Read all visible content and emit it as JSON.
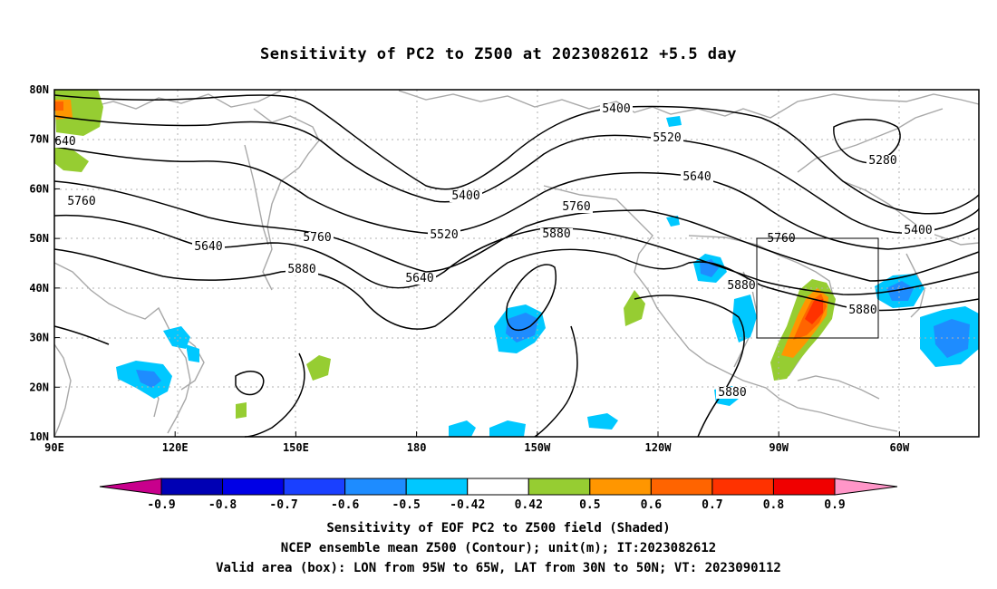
{
  "title": "Sensitivity of PC2 to Z500 at 2023082612 +5.5 day",
  "lat_labels": [
    "80N",
    "70N",
    "60N",
    "50N",
    "40N",
    "30N",
    "20N",
    "10N"
  ],
  "lon_labels": [
    "90E",
    "120E",
    "150E",
    "180",
    "150W",
    "120W",
    "90W",
    "60W"
  ],
  "contour_labels": [
    {
      "text": "5400",
      "name": "contour-label-5400"
    },
    {
      "text": "5520",
      "name": "contour-label-5520"
    },
    {
      "text": "5280",
      "name": "contour-label-5280"
    },
    {
      "text": "5640",
      "name": "contour-label-5640"
    },
    {
      "text": "5400",
      "name": "contour-label-5400"
    },
    {
      "text": "5400",
      "name": "contour-label-5400"
    },
    {
      "text": "5760",
      "name": "contour-label-5760"
    },
    {
      "text": "5640",
      "name": "contour-label-5640"
    },
    {
      "text": "5760",
      "name": "contour-label-5760"
    },
    {
      "text": "5520",
      "name": "contour-label-5520"
    },
    {
      "text": "5760",
      "name": "contour-label-5760"
    },
    {
      "text": "5880",
      "name": "contour-label-5880"
    },
    {
      "text": "5760",
      "name": "contour-label-5760"
    },
    {
      "text": "5880",
      "name": "contour-label-5880"
    },
    {
      "text": "5640",
      "name": "contour-label-5640"
    },
    {
      "text": "5880",
      "name": "contour-label-5880"
    },
    {
      "text": "5880",
      "name": "contour-label-5880"
    },
    {
      "text": "5880",
      "name": "contour-label-5880"
    },
    {
      "text": "640",
      "name": "contour-label-640"
    }
  ],
  "colorbar": {
    "labels": [
      "-0.9",
      "-0.8",
      "-0.7",
      "-0.6",
      "-0.5",
      "-0.42",
      "0.42",
      "0.5",
      "0.6",
      "0.7",
      "0.8",
      "0.9"
    ],
    "colors": [
      "#0000b4",
      "#0000e6",
      "#1a40ff",
      "#1e8cff",
      "#00c8ff",
      "#ffffff",
      "#96cd32",
      "#ff9600",
      "#ff6400",
      "#ff3200",
      "#f00000"
    ],
    "low_color": "#c8008c",
    "high_color": "#ff96c8"
  },
  "caption": {
    "line1": "Sensitivity of EOF PC2 to Z500 field (Shaded)",
    "line2": "NCEP ensemble mean Z500 (Contour); unit(m); IT:2023082612",
    "line3": "Valid area (box): LON from 95W to 65W, LAT from 30N to 50N; VT: 2023090112"
  }
}
